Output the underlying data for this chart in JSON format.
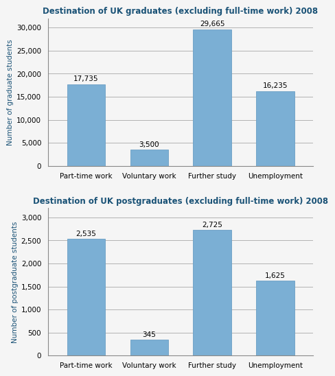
{
  "chart1": {
    "title": "Destination of UK graduates (excluding full-time work) 2008",
    "categories": [
      "Part-time work",
      "Voluntary work",
      "Further study",
      "Unemployment"
    ],
    "values": [
      17735,
      3500,
      29665,
      16235
    ],
    "labels": [
      "17,735",
      "3,500",
      "29,665",
      "16,235"
    ],
    "ylabel": "Number of graduate students",
    "ylim": [
      0,
      32000
    ],
    "yticks": [
      0,
      5000,
      10000,
      15000,
      20000,
      25000,
      30000
    ],
    "ytick_labels": [
      "0",
      "5,000",
      "10,000",
      "15,000",
      "20,000",
      "25,000",
      "30,000"
    ]
  },
  "chart2": {
    "title": "Destination of UK postgraduates (excluding full-time work) 2008",
    "categories": [
      "Part-time work",
      "Voluntary work",
      "Further study",
      "Unemployment"
    ],
    "values": [
      2535,
      345,
      2725,
      1625
    ],
    "labels": [
      "2,535",
      "345",
      "2,725",
      "1,625"
    ],
    "ylabel": "Number of postgraduate students",
    "ylim": [
      0,
      3200
    ],
    "yticks": [
      0,
      500,
      1000,
      1500,
      2000,
      2500,
      3000
    ],
    "ytick_labels": [
      "0",
      "500",
      "1,000",
      "1,500",
      "2,000",
      "2,500",
      "3,000"
    ]
  },
  "bar_color": "#7BAFD4",
  "bar_edgecolor": "#6A9EC4",
  "title_color": "#1A5276",
  "ylabel_color": "#1A5276",
  "title_fontsize": 8.5,
  "label_fontsize": 7.5,
  "ylabel_fontsize": 7.5,
  "xtick_fontsize": 7.5,
  "ytick_fontsize": 7.5,
  "background_color": "#F5F5F5",
  "grid_color": "#999999",
  "bar_width": 0.6
}
